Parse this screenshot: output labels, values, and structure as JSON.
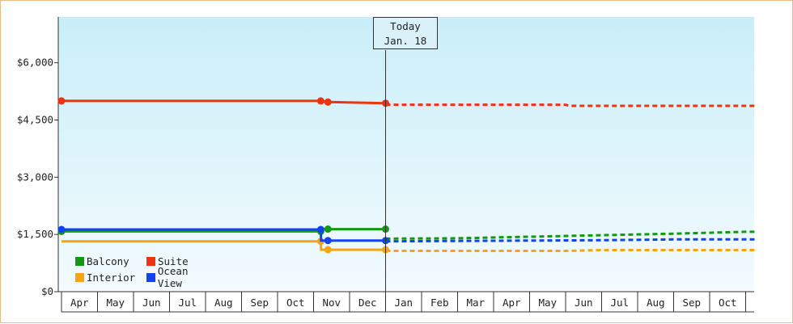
{
  "chart_data": {
    "type": "line",
    "ylim": [
      0,
      7200
    ],
    "y_ticks": [
      {
        "value": 0,
        "label": "$0"
      },
      {
        "value": 1500,
        "label": "$1,500"
      },
      {
        "value": 3000,
        "label": "$3,000"
      },
      {
        "value": 4500,
        "label": "$4,500"
      },
      {
        "value": 6000,
        "label": "$6,000"
      }
    ],
    "months": [
      "Apr",
      "May",
      "Jun",
      "Jul",
      "Aug",
      "Sep",
      "Oct",
      "Nov",
      "Dec",
      "Jan",
      "Feb",
      "Mar",
      "Apr",
      "May",
      "Jun",
      "Jul",
      "Aug",
      "Sep",
      "Oct"
    ],
    "today": {
      "line1": "Today",
      "line2": "Jan. 18",
      "position_month": 9.0
    },
    "series": [
      {
        "name": "Balcony",
        "color": "#119911",
        "historical": [
          [
            0.0,
            1580
          ],
          [
            7.2,
            1580
          ],
          [
            7.21,
            1640
          ],
          [
            7.4,
            1640
          ],
          [
            9.0,
            1640
          ]
        ],
        "markers": [
          0.0,
          7.2,
          7.4,
          9.0
        ],
        "forecast": [
          [
            9.0,
            1390
          ],
          [
            11.0,
            1400
          ],
          [
            13.0,
            1440
          ],
          [
            15.0,
            1480
          ],
          [
            17.0,
            1520
          ],
          [
            19.0,
            1570
          ],
          [
            19.3,
            1570
          ]
        ]
      },
      {
        "name": "Suite",
        "color": "#ee3311",
        "historical": [
          [
            0.0,
            5000
          ],
          [
            7.2,
            5000
          ],
          [
            7.4,
            4970
          ],
          [
            9.0,
            4940
          ]
        ],
        "markers": [
          0.0,
          7.2,
          7.4,
          9.0
        ],
        "forecast": [
          [
            9.0,
            4900
          ],
          [
            14.0,
            4900
          ],
          [
            14.1,
            4870
          ],
          [
            19.3,
            4870
          ]
        ]
      },
      {
        "name": "Interior",
        "color": "#f5a511",
        "historical": [
          [
            0.0,
            1320
          ],
          [
            7.2,
            1320
          ],
          [
            7.21,
            1100
          ],
          [
            9.0,
            1100
          ]
        ],
        "markers": [
          7.2,
          7.4,
          9.0
        ],
        "forecast": [
          [
            9.0,
            1070
          ],
          [
            14.0,
            1070
          ],
          [
            15.0,
            1090
          ],
          [
            19.3,
            1090
          ]
        ]
      },
      {
        "name": "Ocean View",
        "color": "#1144ee",
        "historical": [
          [
            0.0,
            1630
          ],
          [
            7.2,
            1630
          ],
          [
            7.21,
            1340
          ],
          [
            9.0,
            1340
          ]
        ],
        "markers": [
          0.0,
          7.2,
          7.4,
          9.0
        ],
        "forecast": [
          [
            9.0,
            1320
          ],
          [
            11.0,
            1330
          ],
          [
            15.0,
            1350
          ],
          [
            17.0,
            1370
          ],
          [
            19.3,
            1370
          ]
        ]
      }
    ],
    "legend": [
      {
        "label": "Balcony",
        "color": "#119911"
      },
      {
        "label": "Suite",
        "color": "#ee3311"
      },
      {
        "label": "Interior",
        "color": "#f5a511"
      },
      {
        "label": "Ocean View",
        "color": "#1144ee"
      }
    ],
    "grid": false,
    "legend_position": "bottom-left"
  }
}
